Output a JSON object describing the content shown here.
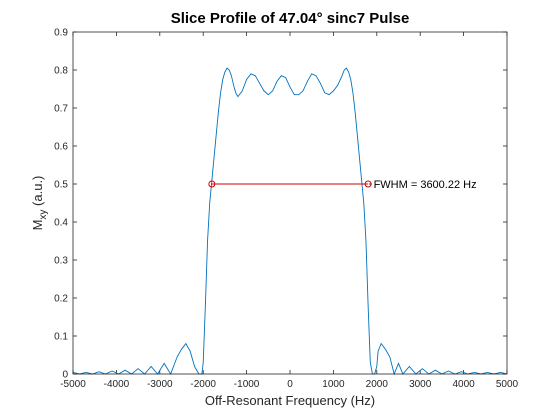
{
  "chart_data": {
    "type": "line",
    "title": "Slice Profile of 47.04° sinc7 Pulse",
    "xlabel": "Off-Resonant Frequency (Hz)",
    "ylabel_main": "M",
    "ylabel_sub": "xy",
    "ylabel_unit": " (a.u.)",
    "xlim": [
      -5000,
      5000
    ],
    "ylim": [
      0,
      0.9
    ],
    "x_ticks": [
      -5000,
      -4000,
      -3000,
      -2000,
      -1000,
      0,
      1000,
      2000,
      3000,
      4000,
      5000
    ],
    "x_tick_labels": [
      "-5000",
      "-4000",
      "-3000",
      "-2000",
      "-1000",
      "0",
      "1000",
      "2000",
      "3000",
      "4000",
      "5000"
    ],
    "y_ticks": [
      0,
      0.1,
      0.2,
      0.3,
      0.4,
      0.5,
      0.6,
      0.7,
      0.8,
      0.9
    ],
    "y_tick_labels": [
      "0",
      "0.1",
      "0.2",
      "0.3",
      "0.4",
      "0.5",
      "0.6",
      "0.7",
      "0.8",
      "0.9"
    ],
    "grid": false,
    "series": [
      {
        "color": "#0072BD",
        "x": [
          -5000,
          -4850,
          -4700,
          -4550,
          -4400,
          -4250,
          -4100,
          -3950,
          -3800,
          -3650,
          -3500,
          -3350,
          -3200,
          -3050,
          -2900,
          -2750,
          -2600,
          -2500,
          -2400,
          -2300,
          -2200,
          -2100,
          -2030,
          -2000,
          -1950,
          -1900,
          -1850,
          -1800,
          -1750,
          -1700,
          -1650,
          -1600,
          -1550,
          -1500,
          -1450,
          -1400,
          -1350,
          -1300,
          -1250,
          -1200,
          -1100,
          -1000,
          -900,
          -800,
          -700,
          -600,
          -500,
          -400,
          -300,
          -200,
          -100,
          0,
          100,
          200,
          300,
          400,
          500,
          600,
          700,
          800,
          900,
          1000,
          1100,
          1200,
          1250,
          1300,
          1350,
          1400,
          1450,
          1500,
          1550,
          1600,
          1650,
          1700,
          1750,
          1800,
          1850,
          1900,
          1950,
          2000,
          2030,
          2100,
          2200,
          2300,
          2400,
          2500,
          2600,
          2750,
          2900,
          3050,
          3200,
          3350,
          3500,
          3650,
          3800,
          3950,
          4100,
          4250,
          4400,
          4550,
          4700,
          4850,
          5000
        ],
        "y": [
          0.004,
          0.0,
          0.004,
          0.0,
          0.006,
          0.0,
          0.008,
          0.0,
          0.01,
          0.0,
          0.014,
          0.0,
          0.02,
          0.0,
          0.028,
          0.0,
          0.045,
          0.065,
          0.08,
          0.06,
          0.02,
          0.0,
          0.0,
          0.03,
          0.18,
          0.35,
          0.45,
          0.51,
          0.57,
          0.63,
          0.69,
          0.74,
          0.775,
          0.795,
          0.805,
          0.8,
          0.785,
          0.76,
          0.74,
          0.73,
          0.745,
          0.775,
          0.79,
          0.785,
          0.765,
          0.745,
          0.735,
          0.745,
          0.77,
          0.785,
          0.78,
          0.755,
          0.735,
          0.735,
          0.745,
          0.77,
          0.79,
          0.785,
          0.765,
          0.74,
          0.735,
          0.745,
          0.76,
          0.785,
          0.8,
          0.805,
          0.795,
          0.775,
          0.74,
          0.69,
          0.63,
          0.57,
          0.51,
          0.45,
          0.35,
          0.18,
          0.03,
          0.0,
          0.0,
          0.02,
          0.06,
          0.08,
          0.065,
          0.045,
          0.0,
          0.028,
          0.0,
          0.02,
          0.0,
          0.014,
          0.0,
          0.01,
          0.0,
          0.008,
          0.0,
          0.006,
          0.0,
          0.004,
          0.0,
          0.004,
          0.0,
          0.004,
          0.0
        ]
      }
    ],
    "fwhm_line": {
      "color": "#D40000",
      "x_start": -1800.11,
      "x_end": 1800.11,
      "y": 0.5
    },
    "annotation": {
      "text": "FWHM = 3600.22 Hz",
      "x": 1880,
      "y": 0.5
    }
  }
}
